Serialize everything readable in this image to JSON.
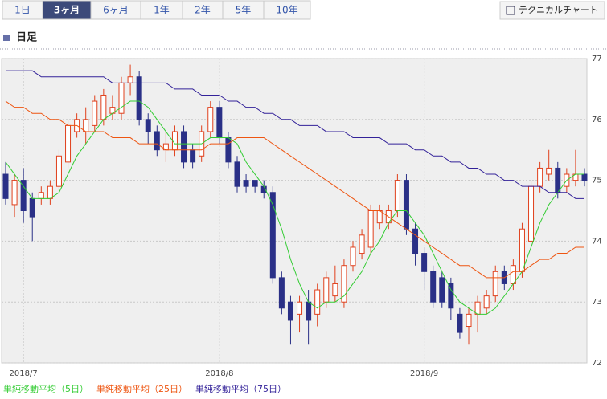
{
  "tabs": [
    {
      "label": "1日"
    },
    {
      "label": "3ヶ月",
      "active": true
    },
    {
      "label": "6ヶ月"
    },
    {
      "label": "1年"
    },
    {
      "label": "2年"
    },
    {
      "label": "5年"
    },
    {
      "label": "10年"
    }
  ],
  "button": "テクニカルチャート",
  "heading": "日足",
  "chart_data": {
    "type": "candlestick",
    "categories": [
      null,
      null,
      "2018/7",
      null,
      null,
      null,
      null,
      null,
      null,
      null,
      null,
      null,
      null,
      null,
      null,
      null,
      null,
      null,
      null,
      null,
      null,
      null,
      null,
      null,
      "2018/8",
      null,
      null,
      null,
      null,
      null,
      null,
      null,
      null,
      null,
      null,
      null,
      null,
      null,
      null,
      null,
      null,
      null,
      null,
      null,
      null,
      null,
      null,
      "2018/9",
      null,
      null,
      null,
      null,
      null,
      null,
      null,
      null,
      null,
      null,
      null,
      null,
      null,
      null,
      null,
      null,
      null,
      null
    ],
    "open": [
      75.1,
      74.6,
      75.0,
      74.7,
      74.7,
      74.7,
      74.9,
      75.3,
      75.8,
      75.8,
      75.9,
      76.0,
      76.1,
      76.1,
      76.6,
      76.7,
      76.0,
      75.8,
      75.5,
      75.5,
      75.8,
      75.5,
      75.4,
      75.8,
      76.2,
      75.7,
      75.3,
      75.0,
      75.0,
      74.9,
      74.8,
      73.4,
      73.0,
      72.8,
      73.0,
      72.8,
      73.0,
      73.1,
      73.0,
      73.6,
      73.8,
      73.9,
      74.3,
      74.3,
      74.5,
      75.0,
      74.2,
      73.8,
      73.5,
      73.4,
      73.3,
      72.8,
      72.6,
      72.8,
      72.9,
      73.1,
      73.5,
      73.3,
      73.5,
      74.0,
      74.9,
      75.1,
      75.2,
      74.9,
      75.0,
      75.1
    ],
    "high": [
      75.3,
      75.1,
      75.2,
      74.8,
      74.9,
      75.0,
      75.5,
      76.0,
      76.1,
      76.2,
      76.4,
      76.5,
      76.4,
      76.7,
      76.9,
      76.8,
      76.1,
      75.9,
      75.8,
      75.9,
      75.9,
      75.6,
      75.9,
      76.3,
      76.3,
      75.8,
      75.4,
      75.1,
      75.0,
      75.0,
      74.9,
      73.5,
      73.1,
      73.1,
      73.2,
      73.3,
      73.5,
      73.6,
      73.7,
      74.0,
      74.2,
      74.6,
      74.6,
      74.6,
      75.1,
      75.1,
      74.3,
      73.9,
      73.6,
      73.5,
      73.4,
      72.9,
      72.9,
      73.1,
      73.2,
      73.6,
      73.6,
      73.7,
      74.3,
      75.0,
      75.3,
      75.5,
      75.3,
      75.2,
      75.5,
      75.2
    ],
    "low": [
      74.6,
      74.4,
      74.3,
      74.0,
      74.6,
      74.6,
      74.8,
      75.2,
      75.7,
      75.6,
      75.8,
      75.9,
      76.0,
      76.0,
      76.4,
      75.9,
      75.6,
      75.4,
      75.3,
      75.4,
      75.2,
      75.2,
      75.3,
      75.7,
      75.6,
      75.2,
      74.8,
      74.8,
      74.8,
      74.7,
      73.3,
      72.8,
      72.3,
      72.5,
      72.3,
      72.6,
      72.9,
      73.0,
      72.9,
      73.5,
      73.7,
      73.8,
      74.2,
      74.2,
      74.4,
      74.1,
      73.6,
      73.2,
      72.9,
      72.9,
      72.7,
      72.4,
      72.3,
      72.5,
      72.8,
      73.0,
      73.2,
      73.2,
      73.4,
      73.9,
      74.8,
      75.0,
      74.7,
      74.8,
      74.9,
      74.9
    ],
    "close": [
      74.7,
      75.0,
      74.5,
      74.4,
      74.8,
      74.9,
      75.4,
      75.9,
      76.0,
      76.0,
      76.3,
      76.4,
      76.2,
      76.6,
      76.7,
      76.0,
      75.8,
      75.5,
      75.6,
      75.8,
      75.3,
      75.3,
      75.8,
      76.2,
      75.7,
      75.3,
      74.9,
      74.9,
      74.9,
      74.8,
      73.4,
      72.9,
      72.7,
      73.0,
      72.7,
      73.2,
      73.4,
      73.3,
      73.6,
      73.9,
      74.1,
      74.5,
      74.5,
      74.5,
      75.0,
      74.2,
      73.8,
      73.5,
      73.0,
      73.0,
      72.9,
      72.5,
      72.8,
      73.0,
      73.1,
      73.5,
      73.3,
      73.6,
      74.2,
      74.9,
      75.2,
      75.2,
      74.8,
      75.1,
      75.1,
      75.0
    ],
    "up_color": "#e0401c",
    "down_color": "#2a3087",
    "series": [
      {
        "name": "単純移動平均（5日）",
        "color": "#33cc33",
        "values": [
          75.3,
          75.1,
          74.9,
          74.7,
          74.7,
          74.7,
          74.8,
          75.1,
          75.4,
          75.6,
          75.8,
          76.0,
          76.1,
          76.2,
          76.3,
          76.3,
          76.2,
          76.0,
          75.8,
          75.6,
          75.6,
          75.6,
          75.6,
          75.7,
          75.7,
          75.7,
          75.6,
          75.3,
          75.1,
          74.9,
          74.6,
          74.2,
          73.7,
          73.3,
          73.0,
          72.9,
          73.0,
          73.0,
          73.1,
          73.3,
          73.5,
          73.8,
          74.0,
          74.3,
          74.5,
          74.5,
          74.3,
          74.1,
          73.8,
          73.5,
          73.2,
          73.0,
          72.9,
          72.8,
          72.8,
          72.9,
          73.1,
          73.3,
          73.5,
          73.9,
          74.3,
          74.6,
          74.8,
          75.0,
          75.1,
          75.1
        ]
      },
      {
        "name": "単純移動平均（25日）",
        "color": "#ee5511",
        "values": [
          76.3,
          76.2,
          76.2,
          76.1,
          76.1,
          76.0,
          76.0,
          75.9,
          75.9,
          75.8,
          75.8,
          75.8,
          75.7,
          75.7,
          75.7,
          75.6,
          75.6,
          75.6,
          75.5,
          75.5,
          75.5,
          75.5,
          75.5,
          75.6,
          75.6,
          75.6,
          75.7,
          75.7,
          75.7,
          75.7,
          75.6,
          75.5,
          75.4,
          75.3,
          75.2,
          75.1,
          75.0,
          74.9,
          74.8,
          74.7,
          74.6,
          74.5,
          74.5,
          74.4,
          74.3,
          74.2,
          74.1,
          74.0,
          73.9,
          73.8,
          73.7,
          73.6,
          73.6,
          73.5,
          73.4,
          73.4,
          73.4,
          73.5,
          73.5,
          73.6,
          73.7,
          73.7,
          73.8,
          73.8,
          73.9,
          73.9
        ]
      },
      {
        "name": "単純移動平均（75日）",
        "color": "#332299",
        "values": [
          76.8,
          76.8,
          76.8,
          76.8,
          76.7,
          76.7,
          76.7,
          76.7,
          76.7,
          76.7,
          76.7,
          76.7,
          76.6,
          76.6,
          76.6,
          76.6,
          76.6,
          76.6,
          76.6,
          76.5,
          76.5,
          76.5,
          76.4,
          76.4,
          76.4,
          76.3,
          76.3,
          76.2,
          76.2,
          76.1,
          76.1,
          76.0,
          76.0,
          75.9,
          75.9,
          75.9,
          75.8,
          75.8,
          75.8,
          75.7,
          75.7,
          75.7,
          75.7,
          75.6,
          75.6,
          75.6,
          75.5,
          75.5,
          75.4,
          75.4,
          75.3,
          75.3,
          75.2,
          75.2,
          75.1,
          75.1,
          75.0,
          75.0,
          74.9,
          74.9,
          74.9,
          74.8,
          74.8,
          74.8,
          74.7,
          74.7
        ]
      }
    ],
    "ylim": [
      72,
      77
    ],
    "yticks": [
      72,
      73,
      74,
      75,
      76,
      77
    ],
    "grid": true
  }
}
